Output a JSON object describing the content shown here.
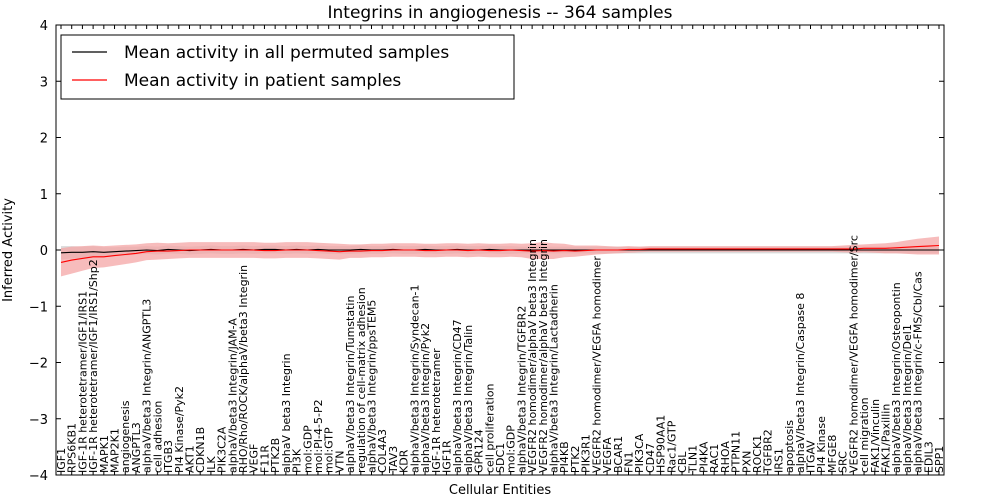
{
  "chart_data": {
    "type": "line",
    "title": "Integrins in angiogenesis -- 364 samples",
    "xlabel": "Cellular Entities",
    "ylabel": "Inferred Activity",
    "ylim": [
      -4,
      4
    ],
    "yticks": [
      -4,
      -3,
      -2,
      -1,
      0,
      1,
      2,
      3,
      4
    ],
    "yticks_labels": [
      "−4",
      "−3",
      "−2",
      "−1",
      "0",
      "1",
      "2",
      "3",
      "4"
    ],
    "grid": false,
    "legend_position": "top-left",
    "legend": [
      {
        "label": "Mean activity in all permuted samples",
        "color": "#000000"
      },
      {
        "label": "Mean activity in patient samples",
        "color": "#ff0000"
      }
    ],
    "categories": [
      "IGF1",
      "RPS6KB1",
      "IGF-1R heterotetramer/IGF1/IRS1",
      "IGF-1R heterotetramer/IGF1/IRS1/Shp2",
      "MAPK1",
      "MAP2K1",
      "angiogenesis",
      "ANGPTL3",
      "alphaV/beta3 Integrin/ANGPTL3",
      "cell adhesion",
      "ITGB3",
      "PI4 Kinase/Pyk2",
      "AKT1",
      "CDKN1B",
      "ILK",
      "PIK3C2A",
      "alphaV/beta3 Integrin/JAM-A",
      "RHO/Rho/ROCK/alphaV/beta3 Integrin",
      "VEGF",
      "F11R",
      "PTK2B",
      "alphaV beta3 Integrin",
      "PI3K",
      "mol:GDP",
      "mol:PI-4-5-P2",
      "mol:GTP",
      "VTN",
      "alphaV/beta3 Integrin/Tumstatin",
      "regulation of cell-matrix adhesion",
      "alphaV/beta3 Integrin/ppsTEM5",
      "COL4A3",
      "TAV3",
      "KDR",
      "alphaV/beta3 Integrin/Syndecan-1",
      "alphaV/beta3 Integrin/Pyk2",
      "IGF-1R heterotetramer",
      "IGF1R",
      "alphaV/beta3 Integrin/CD47",
      "alphaV/beta3 Integrin/Talin",
      "GPR124",
      "cell proliferation",
      "SDC1",
      "mol:GDP",
      "alphaV/beta3 Integrin/TGFBR2",
      "VEGFR2 homodimer/alphaV beta3 Integrin",
      "VEGFR2 homodimer/alphaV beta3 Integrin",
      "alphaV/beta3 Integrin/Lactadherin",
      "PI4KB",
      "PTK2",
      "PIK3R1",
      "VEGFR2 homodimer/VEGFA homodimer",
      "VEGFA",
      "BCAR1",
      "FN1",
      "PIK3CA",
      "CD47",
      "HSP90AA1",
      "Rac1/GTP",
      "CBL",
      "TLN1",
      "PI4KA",
      "RAC1",
      "RHOA",
      "PTPN11",
      "PXN",
      "ROCK1",
      "TGFBR2",
      "IRS1",
      "apoptosis",
      "alphaV/beta3 Integrin/Caspase 8",
      "ITGAV",
      "PI4 Kinase",
      "MFGE8",
      "SRC",
      "VEGFR2 homodimer/VEGFA homodimer/Src",
      "cell migration",
      "FAK1/Vinculin",
      "FAK1/Paxillin",
      "alphaV/beta3 Integrin/Osteopontin",
      "alphaV/beta3 Integrin/Del1",
      "alphaV/beta3 Integrin/c-FMS/Cbl/Cas",
      "EDIL3",
      "SPP1"
    ],
    "series": [
      {
        "name": "Mean activity in all permuted samples",
        "values": [
          -0.05,
          -0.04,
          -0.04,
          -0.03,
          -0.04,
          -0.03,
          -0.02,
          -0.01,
          0.0,
          -0.01,
          0.01,
          0.0,
          -0.01,
          0.0,
          0.01,
          0.0,
          0.0,
          0.01,
          0.0,
          0.01,
          0.01,
          0.0,
          0.01,
          0.0,
          0.01,
          0.0,
          0.0,
          0.0,
          0.01,
          0.0,
          0.0,
          0.01,
          0.0,
          0.0,
          0.01,
          0.0,
          0.0,
          0.01,
          0.0,
          0.0,
          0.01,
          0.0,
          0.0,
          0.0,
          0.0,
          0.0,
          0.0,
          0.0,
          0.0,
          0.0,
          0.0,
          0.0,
          0.0,
          0.0,
          0.0,
          0.0,
          0.0,
          0.0,
          0.0,
          0.0,
          0.0,
          0.0,
          0.0,
          0.0,
          0.0,
          0.0,
          0.0,
          0.0,
          0.0,
          0.0,
          0.0,
          0.0,
          0.0,
          0.0,
          0.0,
          0.0,
          0.0,
          0.0,
          0.0,
          0.0,
          0.0,
          0.0,
          0.0
        ],
        "band": [
          0.12,
          0.11,
          0.1,
          0.1,
          0.09,
          0.08,
          0.08,
          0.07,
          0.07,
          0.07,
          0.07,
          0.07,
          0.07,
          0.07,
          0.07,
          0.07,
          0.07,
          0.07,
          0.07,
          0.07,
          0.07,
          0.07,
          0.07,
          0.07,
          0.07,
          0.07,
          0.07,
          0.07,
          0.07,
          0.07,
          0.07,
          0.07,
          0.07,
          0.07,
          0.07,
          0.07,
          0.07,
          0.07,
          0.07,
          0.07,
          0.07,
          0.07,
          0.07,
          0.06,
          0.06,
          0.06,
          0.06,
          0.06,
          0.06,
          0.06,
          0.06,
          0.06,
          0.06,
          0.06,
          0.06,
          0.06,
          0.06,
          0.06,
          0.06,
          0.06,
          0.06,
          0.06,
          0.06,
          0.06,
          0.06,
          0.06,
          0.06,
          0.06,
          0.06,
          0.06,
          0.06,
          0.06,
          0.06,
          0.06,
          0.06,
          0.06,
          0.06,
          0.06,
          0.06,
          0.06,
          0.06,
          0.06,
          0.06
        ],
        "color": "#000000",
        "band_color": "#bbbbbb"
      },
      {
        "name": "Mean activity in patient samples",
        "values": [
          -0.22,
          -0.18,
          -0.15,
          -0.12,
          -0.12,
          -0.1,
          -0.08,
          -0.06,
          -0.03,
          -0.02,
          -0.02,
          -0.01,
          0.0,
          0.0,
          0.0,
          0.0,
          0.0,
          0.0,
          0.0,
          -0.01,
          -0.01,
          0.0,
          0.0,
          0.0,
          -0.01,
          -0.02,
          -0.03,
          -0.02,
          -0.02,
          -0.01,
          -0.01,
          0.0,
          0.0,
          0.0,
          -0.01,
          -0.01,
          0.0,
          0.0,
          -0.01,
          0.0,
          -0.01,
          -0.01,
          0.0,
          -0.01,
          -0.02,
          -0.01,
          -0.02,
          -0.01,
          -0.02,
          -0.01,
          0.0,
          0.0,
          0.0,
          0.01,
          0.01,
          0.02,
          0.02,
          0.02,
          0.02,
          0.02,
          0.02,
          0.02,
          0.02,
          0.02,
          0.02,
          0.02,
          0.02,
          0.02,
          0.02,
          0.02,
          0.02,
          0.02,
          0.02,
          0.02,
          0.02,
          0.03,
          0.03,
          0.03,
          0.04,
          0.05,
          0.06,
          0.07,
          0.08
        ],
        "band": [
          0.25,
          0.24,
          0.22,
          0.2,
          0.19,
          0.18,
          0.17,
          0.16,
          0.15,
          0.15,
          0.14,
          0.14,
          0.14,
          0.14,
          0.14,
          0.14,
          0.14,
          0.14,
          0.14,
          0.14,
          0.14,
          0.14,
          0.14,
          0.14,
          0.14,
          0.14,
          0.14,
          0.12,
          0.12,
          0.12,
          0.12,
          0.12,
          0.12,
          0.12,
          0.12,
          0.12,
          0.12,
          0.12,
          0.12,
          0.12,
          0.12,
          0.12,
          0.12,
          0.12,
          0.14,
          0.15,
          0.14,
          0.12,
          0.1,
          0.09,
          0.08,
          0.07,
          0.06,
          0.06,
          0.05,
          0.05,
          0.05,
          0.05,
          0.05,
          0.05,
          0.05,
          0.05,
          0.05,
          0.05,
          0.05,
          0.05,
          0.05,
          0.05,
          0.05,
          0.05,
          0.05,
          0.05,
          0.05,
          0.06,
          0.07,
          0.07,
          0.08,
          0.09,
          0.1,
          0.12,
          0.14,
          0.15,
          0.16
        ],
        "color": "#ff0000",
        "band_color": "#f4a6a6"
      }
    ]
  }
}
